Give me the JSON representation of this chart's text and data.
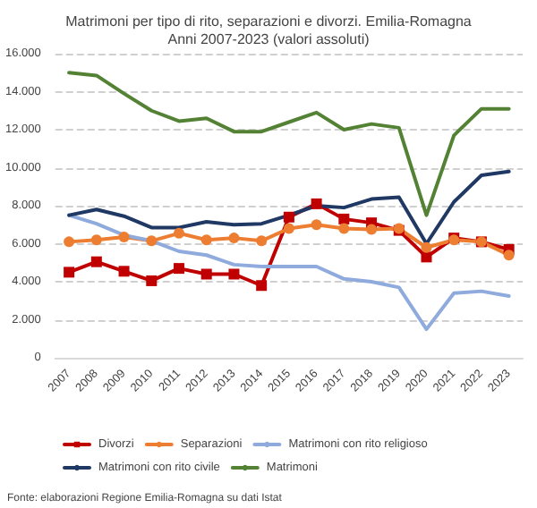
{
  "chart_data": {
    "type": "line",
    "title": "Matrimoni per tipo di rito, separazioni e divorzi. Emilia-Romagna\nAnni 2007-2023 (valori assoluti)",
    "categories": [
      "2007",
      "2008",
      "2009",
      "2010",
      "2011",
      "2012",
      "2013",
      "2014",
      "2015",
      "2016",
      "2017",
      "2018",
      "2019",
      "2020",
      "2021",
      "2022",
      "2023"
    ],
    "series": [
      {
        "name": "Divorzi",
        "color": "#c00000",
        "marker": "square",
        "values": [
          4500,
          5050,
          4550,
          4050,
          4700,
          4400,
          4400,
          3800,
          7400,
          8100,
          7300,
          7100,
          6700,
          5300,
          6300,
          6100,
          5700
        ]
      },
      {
        "name": "Separazioni",
        "color": "#ed7d31",
        "marker": "circle",
        "values": [
          6100,
          6200,
          6350,
          6150,
          6550,
          6200,
          6300,
          6150,
          6800,
          7000,
          6800,
          6750,
          6800,
          5800,
          6200,
          6100,
          5400
        ]
      },
      {
        "name": "Matrimoni con rito religioso",
        "color": "#8faadc",
        "marker": "none",
        "values": [
          7500,
          7050,
          6450,
          6150,
          5600,
          5400,
          4900,
          4800,
          4800,
          4800,
          4150,
          4000,
          3700,
          1500,
          3400,
          3500,
          3250
        ]
      },
      {
        "name": "Matrimoni con rito civile",
        "color": "#1f3864",
        "marker": "none",
        "values": [
          7500,
          7800,
          7450,
          6850,
          6850,
          7150,
          7000,
          7050,
          7500,
          8000,
          7900,
          8350,
          8450,
          6000,
          8200,
          9600,
          9800
        ]
      },
      {
        "name": "Matrimoni",
        "color": "#548235",
        "marker": "none",
        "values": [
          15000,
          14850,
          13900,
          13000,
          12450,
          12600,
          11900,
          11900,
          12400,
          12900,
          12000,
          12300,
          12100,
          7500,
          11700,
          13100,
          13100
        ]
      }
    ],
    "ylim": [
      0,
      16000
    ],
    "yticks": [
      {
        "value": 0,
        "label": "0"
      },
      {
        "value": 2000,
        "label": "2.000"
      },
      {
        "value": 4000,
        "label": "4.000"
      },
      {
        "value": 6000,
        "label": "6.000"
      },
      {
        "value": 8000,
        "label": "8.000"
      },
      {
        "value": 10000,
        "label": "10.000"
      },
      {
        "value": 12000,
        "label": "12.000"
      },
      {
        "value": 14000,
        "label": "14.000"
      },
      {
        "value": 16000,
        "label": "16.000"
      }
    ],
    "grid": "y",
    "legend": "bottom",
    "line_style": "solid",
    "annotations": [
      "Fonte: elaborazioni Regione Emilia-Romagna su dati Istat"
    ]
  }
}
